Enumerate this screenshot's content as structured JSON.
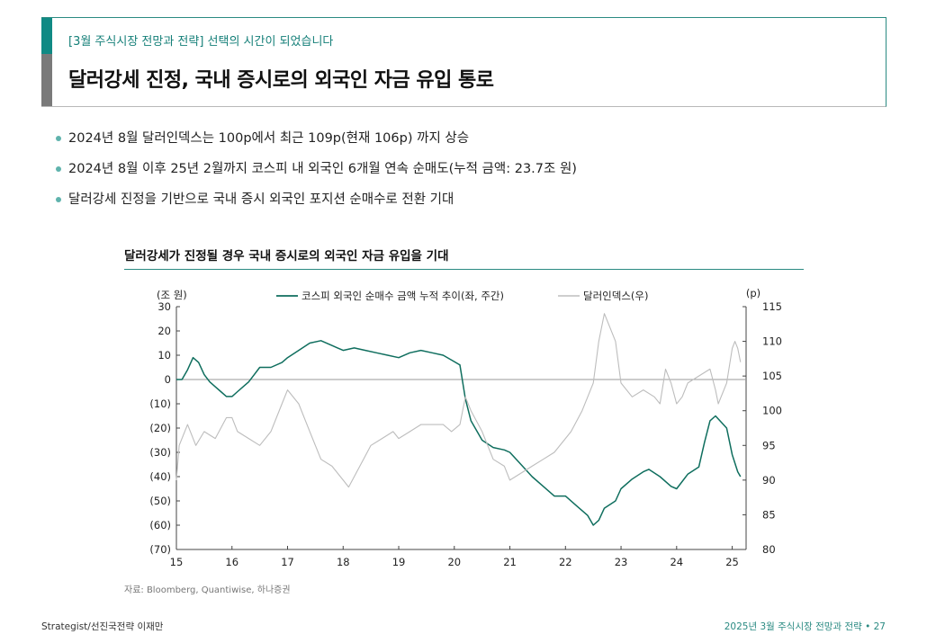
{
  "header": {
    "subtitle": "[3월 주식시장 전망과 전략] 선택의 시간이 되었습니다",
    "title": "달러강세 진정, 국내 증시로의 외국인 자금 유입 통로"
  },
  "bullets": [
    "2024년 8월 달러인덱스는 100p에서 최근 109p(현재 106p) 까지 상승",
    "2024년 8월 이후 25년 2월까지 코스피 내 외국인 6개월 연속 순매도(누적 금액: 23.7조 원)",
    "달러강세 진정을 기반으로 국내 증시 외국인 포지션 순매수로 전환 기대"
  ],
  "chart_data": {
    "type": "line",
    "title": "달러강세가 진정될 경우 국내 증시로의 외국인 자금 유입을 기대",
    "left_unit": "(조 원)",
    "right_unit": "(p)",
    "x_tick_labels": [
      "15",
      "16",
      "17",
      "18",
      "19",
      "20",
      "21",
      "22",
      "23",
      "24",
      "25"
    ],
    "x_range": [
      2015,
      2025.25
    ],
    "y_left_range": [
      -70,
      30
    ],
    "y_left_ticks": [
      30,
      20,
      10,
      0,
      -10,
      -20,
      -30,
      -40,
      -50,
      -60,
      -70
    ],
    "y_left_tick_labels": [
      "30",
      "20",
      "10",
      "0",
      "(10)",
      "(20)",
      "(30)",
      "(40)",
      "(50)",
      "(60)",
      "(70)"
    ],
    "y_right_range": [
      80,
      115
    ],
    "y_right_ticks": [
      115,
      110,
      105,
      100,
      95,
      90,
      85,
      80
    ],
    "y_right_tick_labels": [
      "115",
      "110",
      "105",
      "100",
      "95",
      "90",
      "85",
      "80"
    ],
    "zero_line": 0,
    "legend_position": "top-center",
    "series": [
      {
        "name": "코스피 외국인 순매수 금액 누적 추이(좌, 주간)",
        "axis": "left",
        "color": "#0f6e5e",
        "x": [
          2015.0,
          2015.1,
          2015.2,
          2015.3,
          2015.4,
          2015.5,
          2015.6,
          2015.7,
          2015.8,
          2015.9,
          2016.0,
          2016.1,
          2016.2,
          2016.3,
          2016.4,
          2016.5,
          2016.7,
          2016.9,
          2017.0,
          2017.2,
          2017.4,
          2017.6,
          2017.8,
          2017.9,
          2018.0,
          2018.2,
          2018.4,
          2018.6,
          2018.8,
          2019.0,
          2019.2,
          2019.4,
          2019.6,
          2019.8,
          2019.95,
          2020.1,
          2020.2,
          2020.3,
          2020.5,
          2020.7,
          2020.9,
          2021.0,
          2021.2,
          2021.4,
          2021.6,
          2021.8,
          2022.0,
          2022.2,
          2022.4,
          2022.5,
          2022.6,
          2022.7,
          2022.9,
          2023.0,
          2023.2,
          2023.4,
          2023.5,
          2023.7,
          2023.9,
          2024.0,
          2024.2,
          2024.4,
          2024.5,
          2024.6,
          2024.7,
          2024.9,
          2025.0,
          2025.1,
          2025.15
        ],
        "y": [
          0,
          0,
          4,
          9,
          7,
          2,
          -1,
          -3,
          -5,
          -7,
          -7,
          -5,
          -3,
          -1,
          2,
          5,
          5,
          7,
          9,
          12,
          15,
          16,
          14,
          13,
          12,
          13,
          12,
          11,
          10,
          9,
          11,
          12,
          11,
          10,
          8,
          6,
          -8,
          -17,
          -25,
          -28,
          -29,
          -30,
          -35,
          -40,
          -44,
          -48,
          -48,
          -52,
          -56,
          -60,
          -58,
          -53,
          -50,
          -45,
          -41,
          -38,
          -37,
          -40,
          -44,
          -45,
          -39,
          -36,
          -26,
          -17,
          -15,
          -20,
          -31,
          -38,
          -40
        ]
      },
      {
        "name": "달러인덱스(우)",
        "axis": "right",
        "color": "#bdbdbd",
        "x": [
          2015.0,
          2015.05,
          2015.2,
          2015.35,
          2015.5,
          2015.7,
          2015.9,
          2016.0,
          2016.1,
          2016.3,
          2016.5,
          2016.7,
          2016.9,
          2017.0,
          2017.2,
          2017.4,
          2017.6,
          2017.8,
          2018.0,
          2018.1,
          2018.3,
          2018.5,
          2018.7,
          2018.9,
          2019.0,
          2019.2,
          2019.4,
          2019.6,
          2019.8,
          2019.95,
          2020.1,
          2020.2,
          2020.3,
          2020.5,
          2020.7,
          2020.9,
          2021.0,
          2021.2,
          2021.4,
          2021.6,
          2021.8,
          2022.0,
          2022.1,
          2022.3,
          2022.5,
          2022.6,
          2022.7,
          2022.8,
          2022.9,
          2023.0,
          2023.2,
          2023.4,
          2023.6,
          2023.7,
          2023.8,
          2023.9,
          2024.0,
          2024.1,
          2024.2,
          2024.4,
          2024.6,
          2024.7,
          2024.75,
          2024.9,
          2025.0,
          2025.05,
          2025.1,
          2025.15
        ],
        "y": [
          90,
          95,
          98,
          95,
          97,
          96,
          99,
          99,
          97,
          96,
          95,
          97,
          101,
          103,
          101,
          97,
          93,
          92,
          90,
          89,
          92,
          95,
          96,
          97,
          96,
          97,
          98,
          98,
          98,
          97,
          98,
          102,
          100,
          97,
          93,
          92,
          90,
          91,
          92,
          93,
          94,
          96,
          97,
          100,
          104,
          110,
          114,
          112,
          110,
          104,
          102,
          103,
          102,
          101,
          106,
          104,
          101,
          102,
          104,
          105,
          106,
          103,
          101,
          104,
          109,
          110,
          109,
          107
        ]
      }
    ]
  },
  "source": "자료: Bloomberg, Quantiwise, 하나증권",
  "footer": {
    "left": "Strategist/선진국전략 이재만",
    "right": "2025년 3월 주식시장 전망과 전략 • 27"
  }
}
